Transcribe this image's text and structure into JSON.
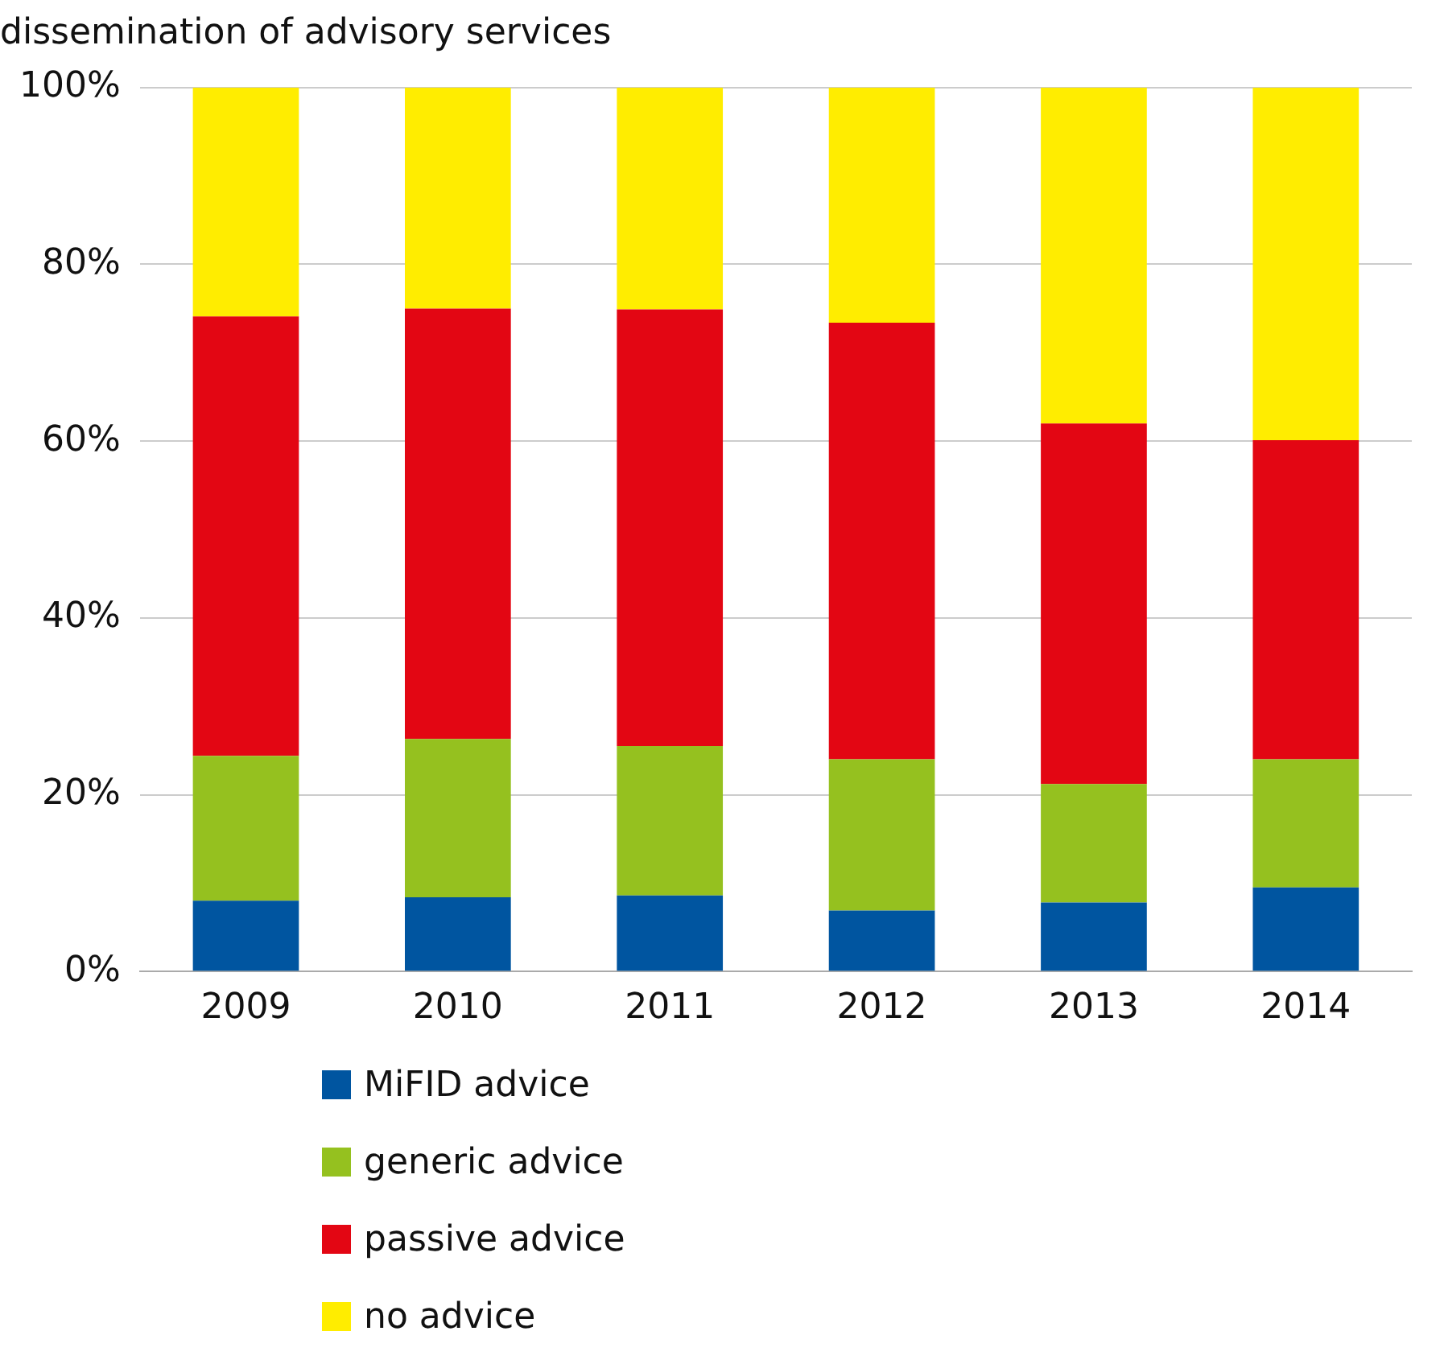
{
  "chart_data": {
    "type": "bar",
    "title": "dissemination of advisory services",
    "categories": [
      "2009",
      "2010",
      "2011",
      "2012",
      "2013",
      "2014"
    ],
    "stacked": true,
    "series": [
      {
        "name": "MiFID advice",
        "color": "#0055a0",
        "values": [
          8.0,
          8.4,
          8.6,
          6.9,
          7.8,
          9.5
        ]
      },
      {
        "name": "generic advice",
        "color": "#95c11f",
        "values": [
          16.4,
          17.9,
          16.9,
          17.1,
          13.4,
          14.5
        ]
      },
      {
        "name": "passive advice",
        "color": "#e30613",
        "values": [
          49.7,
          48.7,
          49.4,
          49.4,
          40.8,
          36.1
        ]
      },
      {
        "name": "no advice",
        "color": "#ffed00",
        "values": [
          25.9,
          25.0,
          25.1,
          26.6,
          38.0,
          39.9
        ]
      }
    ],
    "ylim": [
      0,
      100
    ],
    "yticks": [
      {
        "value": 0,
        "label": "0%"
      },
      {
        "value": 20,
        "label": "20%"
      },
      {
        "value": 40,
        "label": "40%"
      },
      {
        "value": 60,
        "label": "60%"
      },
      {
        "value": 80,
        "label": "80%"
      },
      {
        "value": 100,
        "label": "100%"
      }
    ],
    "grid": "y",
    "legend": "bottom"
  }
}
